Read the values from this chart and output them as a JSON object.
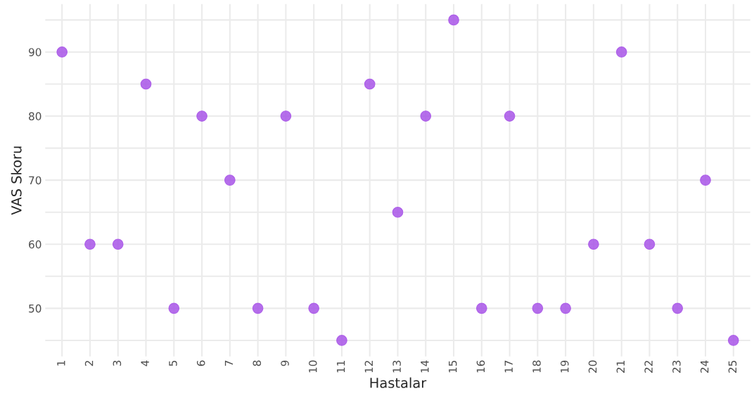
{
  "chart_data": {
    "type": "scatter",
    "xlabel": "Hastalar",
    "ylabel": "VAS Skoru",
    "categories": [
      "1",
      "2",
      "3",
      "4",
      "5",
      "6",
      "7",
      "8",
      "9",
      "10",
      "11",
      "12",
      "13",
      "14",
      "15",
      "16",
      "17",
      "18",
      "19",
      "20",
      "21",
      "22",
      "23",
      "24",
      "25"
    ],
    "series": [
      {
        "color": "#a855e8",
        "values": [
          90,
          60,
          60,
          85,
          50,
          80,
          70,
          50,
          80,
          50,
          45,
          85,
          65,
          80,
          95,
          50,
          80,
          50,
          50,
          60,
          90,
          60,
          50,
          70,
          45
        ]
      }
    ],
    "ylim": [
      42.5,
      97.5
    ],
    "yticks": [
      {
        "value": 45,
        "label": null
      },
      50,
      {
        "value": 55,
        "label": null
      },
      60,
      {
        "value": 65,
        "label": null
      },
      70,
      {
        "value": 75,
        "label": null
      },
      80,
      {
        "value": 85,
        "label": null
      },
      90,
      {
        "value": 95,
        "label": null
      }
    ],
    "grid": true,
    "marker": "circle"
  }
}
